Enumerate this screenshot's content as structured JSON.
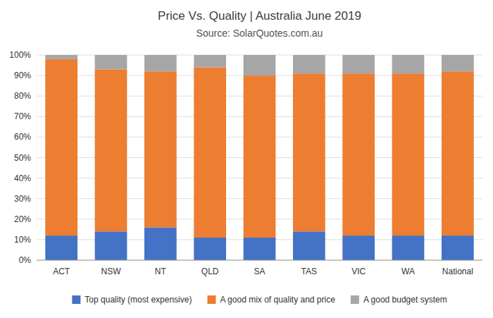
{
  "chart_data": {
    "type": "bar",
    "title": "Price Vs. Quality | Australia June 2019",
    "subtitle": "Source: SolarQuotes.com.au",
    "categories": [
      "ACT",
      "NSW",
      "NT",
      "QLD",
      "SA",
      "TAS",
      "VIC",
      "WA",
      "National"
    ],
    "series": [
      {
        "name": "Top quality (most expensive)",
        "color": "#4472C4",
        "values": [
          12,
          14,
          16,
          11,
          11,
          14,
          12,
          12,
          12
        ]
      },
      {
        "name": "A good mix of quality and price",
        "color": "#ED7D31",
        "values": [
          86,
          79,
          76,
          83,
          79,
          77,
          79,
          79,
          80
        ]
      },
      {
        "name": "A good budget system",
        "color": "#A6A6A6",
        "values": [
          2,
          7,
          8,
          6,
          10,
          9,
          9,
          9,
          8
        ]
      }
    ],
    "stacked": true,
    "ylim": [
      0,
      100
    ],
    "yticks": [
      {
        "value": 0,
        "label": "0%"
      },
      {
        "value": 10,
        "label": "10%"
      },
      {
        "value": 20,
        "label": "20%"
      },
      {
        "value": 30,
        "label": "30%"
      },
      {
        "value": 40,
        "label": "40%"
      },
      {
        "value": 50,
        "label": "50%"
      },
      {
        "value": 60,
        "label": "60%"
      },
      {
        "value": 70,
        "label": "70%"
      },
      {
        "value": 80,
        "label": "80%"
      },
      {
        "value": 90,
        "label": "90%"
      },
      {
        "value": 100,
        "label": "100%"
      }
    ],
    "grid": true,
    "legend": "bottom"
  }
}
